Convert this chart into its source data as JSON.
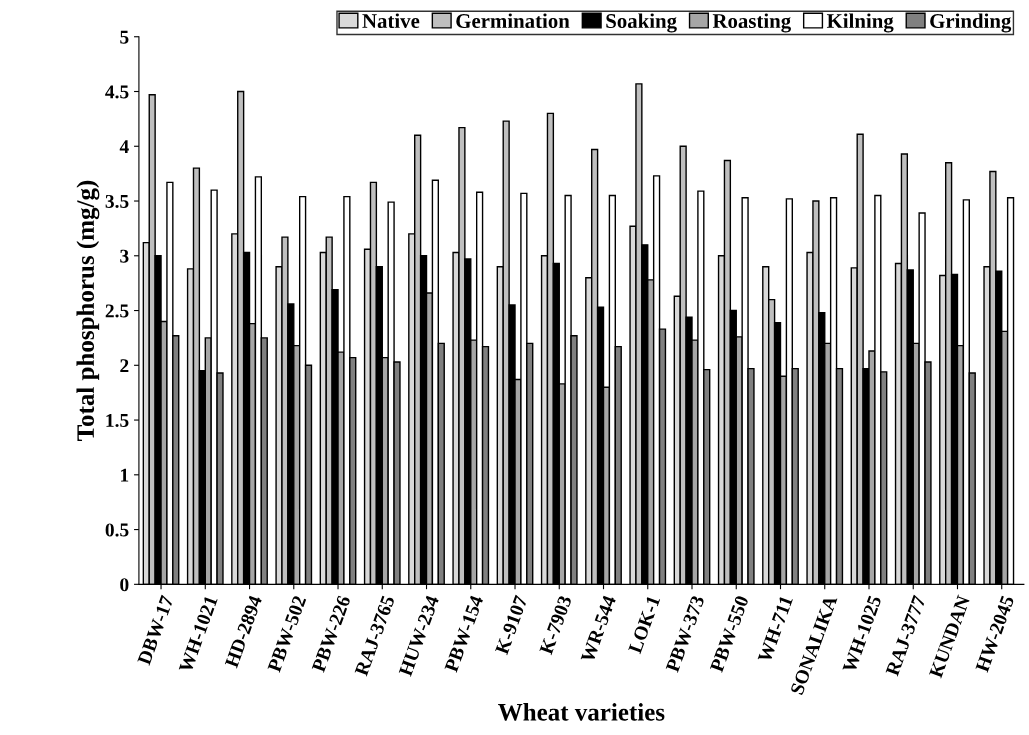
{
  "chart_data": {
    "type": "bar",
    "xlabel": "Wheat varieties",
    "ylabel": "Total phosphorus (mg/g)",
    "categories": [
      "DBW-17",
      "WH-1021",
      "HD-2894",
      "PBW-502",
      "PBW-226",
      "RAJ-3765",
      "HUW-234",
      "PBW-154",
      "K-9107",
      "K-7903",
      "WR-544",
      "LOK-1",
      "PBW-373",
      "PBW-550",
      "WH-711",
      "SONALIKA",
      "WH-1025",
      "RAJ-3777",
      "KUNDAN",
      "HW-2045"
    ],
    "series": [
      {
        "name": "Native",
        "color": "#d9d9d9",
        "values": [
          3.12,
          2.88,
          3.2,
          2.9,
          3.03,
          3.06,
          3.2,
          3.03,
          2.9,
          3.0,
          2.8,
          3.27,
          2.63,
          3.0,
          2.9,
          3.03,
          2.89,
          2.93,
          2.82,
          2.9
        ]
      },
      {
        "name": "Germination",
        "color": "#bfbfbf",
        "values": [
          4.47,
          3.8,
          4.5,
          3.17,
          3.17,
          3.67,
          4.1,
          4.17,
          4.23,
          4.3,
          3.97,
          4.57,
          4.0,
          3.87,
          2.6,
          3.5,
          4.11,
          3.93,
          3.85,
          3.77
        ]
      },
      {
        "name": "Soaking",
        "color": "#000000",
        "values": [
          3.0,
          1.95,
          3.03,
          2.56,
          2.69,
          2.9,
          3.0,
          2.97,
          2.55,
          2.93,
          2.53,
          3.1,
          2.44,
          2.5,
          2.39,
          2.48,
          1.97,
          2.87,
          2.83,
          2.86
        ]
      },
      {
        "name": "Roasting",
        "color": "#a6a6a6",
        "values": [
          2.4,
          2.25,
          2.38,
          2.18,
          2.12,
          2.07,
          2.66,
          2.23,
          1.87,
          1.83,
          1.8,
          2.78,
          2.23,
          2.26,
          1.9,
          2.2,
          2.13,
          2.2,
          2.18,
          2.31
        ]
      },
      {
        "name": "Kilning",
        "color": "#ffffff",
        "values": [
          3.67,
          3.6,
          3.72,
          3.54,
          3.54,
          3.49,
          3.69,
          3.58,
          3.57,
          3.55,
          3.55,
          3.73,
          3.59,
          3.53,
          3.52,
          3.53,
          3.55,
          3.39,
          3.51,
          3.53
        ]
      },
      {
        "name": "Grinding",
        "color": "#808080",
        "values": [
          2.27,
          1.93,
          2.25,
          2.0,
          2.07,
          2.03,
          2.2,
          2.17,
          2.2,
          2.27,
          2.17,
          2.33,
          1.96,
          1.97,
          1.97,
          1.97,
          1.94,
          2.03,
          1.93,
          null
        ]
      }
    ],
    "ylim": [
      0,
      5
    ],
    "yticks": [
      0,
      0.5,
      1,
      1.5,
      2,
      2.5,
      3,
      3.5,
      4,
      4.5,
      5
    ],
    "grid": false,
    "legend": "top right"
  }
}
